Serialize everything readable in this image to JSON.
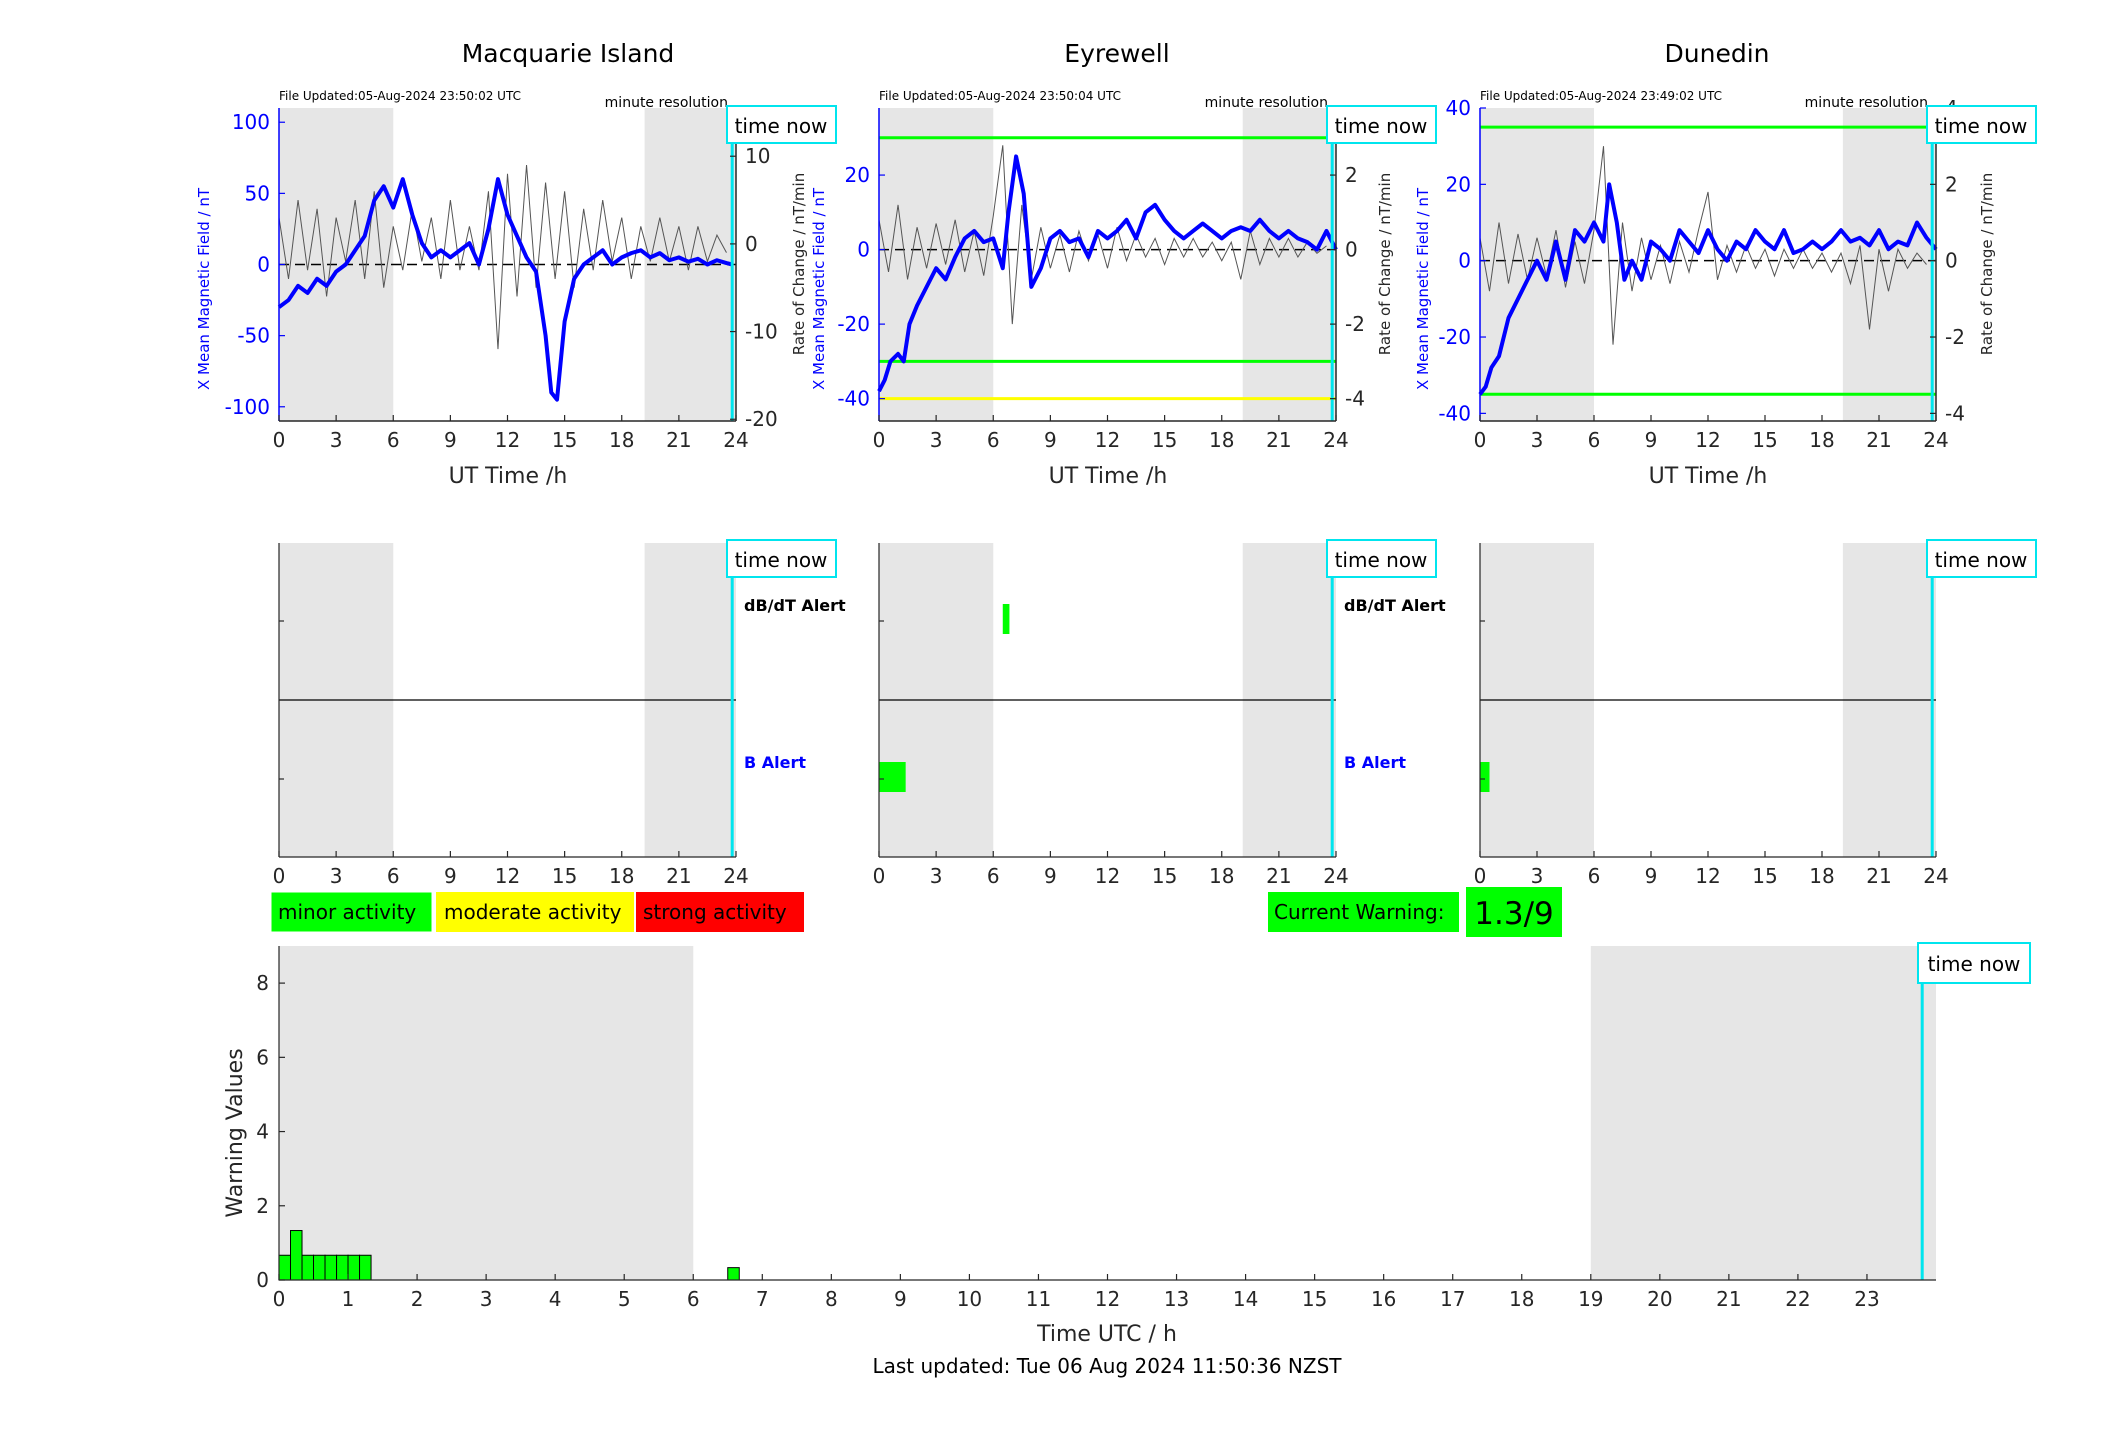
{
  "footer": {
    "last_updated": "Last updated: Tue 06 Aug 2024 11:50:36 NZST"
  },
  "legend": {
    "minor": "minor activity",
    "moderate": "moderate activity",
    "strong": "strong activity",
    "current_warning_label": "Current Warning:",
    "current_warning_value": "1.3/9"
  },
  "colors": {
    "minor": "#00ff00",
    "moderate": "#ffff00",
    "strong": "#ff0000",
    "x_field": "#0000ff",
    "time_now": "#00e5ee",
    "night_shade": "#e6e6e6",
    "rate": "#555555"
  },
  "stations": [
    {
      "title": "Macquarie Island",
      "file_updated": "File Updated:05-Aug-2024 23:50:02 UTC",
      "resolution": "minute resolution",
      "time_now_label": "time now",
      "xlabel": "UT Time /h",
      "ylabel_left": "X Mean Magnetic Field / nT",
      "ylabel_right": "Rate of Change / nT/min",
      "dbdt_alert": "dB/dT Alert",
      "b_alert": "B Alert"
    },
    {
      "title": "Eyrewell",
      "file_updated": "File Updated:05-Aug-2024 23:50:04 UTC",
      "resolution": "minute resolution",
      "time_now_label": "time now",
      "xlabel": "UT Time /h",
      "ylabel_left": "X Mean Magnetic Field / nT",
      "ylabel_right": "Rate of Change / nT/min",
      "dbdt_alert": "dB/dT Alert",
      "b_alert": "B Alert"
    },
    {
      "title": "Dunedin",
      "file_updated": "File Updated:05-Aug-2024 23:49:02 UTC",
      "resolution": "minute resolution",
      "time_now_label": "time now",
      "xlabel": "UT Time /h",
      "ylabel_left": "X Mean Magnetic Field / nT",
      "ylabel_right": "Rate of Change / nT/min",
      "dbdt_alert": "",
      "b_alert": ""
    }
  ],
  "chart_data": [
    {
      "type": "line",
      "station": "Macquarie Island",
      "xlim": [
        0,
        24
      ],
      "ylim": [
        -110,
        110
      ],
      "y2lim": [
        -20.2,
        15.5
      ],
      "xticks": [
        0,
        3,
        6,
        9,
        12,
        15,
        18,
        21,
        24
      ],
      "yticks": [
        -100,
        -50,
        0,
        50,
        100
      ],
      "y2ticks": [
        -20,
        -10,
        0,
        10
      ],
      "night_shade": [
        [
          0,
          6
        ],
        [
          19.2,
          24
        ]
      ],
      "time_now": 23.8,
      "thresholds": [],
      "series": [
        {
          "role": "x_field",
          "x": [
            0,
            0.5,
            1,
            1.5,
            2,
            2.5,
            3,
            3.5,
            4,
            4.5,
            5,
            5.5,
            6,
            6.5,
            7,
            7.5,
            8,
            8.5,
            9,
            9.5,
            10,
            10.5,
            11,
            11.5,
            12,
            12.5,
            13,
            13.5,
            14,
            14.3,
            14.6,
            15,
            15.5,
            16,
            16.5,
            17,
            17.5,
            18,
            18.5,
            19,
            19.5,
            20,
            20.5,
            21,
            21.5,
            22,
            22.5,
            23,
            23.5,
            23.8
          ],
          "y": [
            -30,
            -25,
            -15,
            -20,
            -10,
            -15,
            -5,
            0,
            10,
            20,
            45,
            55,
            40,
            60,
            35,
            15,
            5,
            10,
            5,
            10,
            15,
            0,
            25,
            60,
            35,
            20,
            5,
            -5,
            -50,
            -90,
            -95,
            -40,
            -10,
            0,
            5,
            10,
            0,
            5,
            8,
            10,
            5,
            8,
            3,
            5,
            2,
            4,
            0,
            3,
            1,
            0
          ]
        },
        {
          "role": "rate",
          "x": [
            0,
            0.5,
            1,
            1.5,
            2,
            2.5,
            3,
            3.5,
            4,
            4.5,
            5,
            5.5,
            6,
            6.5,
            7,
            7.5,
            8,
            8.5,
            9,
            9.5,
            10,
            10.5,
            11,
            11.5,
            12,
            12.5,
            13,
            13.5,
            14,
            14.5,
            15,
            15.5,
            16,
            16.5,
            17,
            17.5,
            18,
            18.5,
            19,
            19.5,
            20,
            20.5,
            21,
            21.5,
            22,
            22.5,
            23,
            23.5
          ],
          "y": [
            3,
            -4,
            5,
            -3,
            4,
            -6,
            3,
            -2,
            5,
            -4,
            6,
            -5,
            2,
            -3,
            4,
            -2,
            3,
            -4,
            5,
            -3,
            2,
            -3,
            6,
            -12,
            8,
            -6,
            9,
            -5,
            7,
            -4,
            6,
            -5,
            4,
            -3,
            5,
            -2,
            3,
            -4,
            2,
            -2,
            3,
            -2,
            2,
            -3,
            2,
            -2,
            1,
            -1
          ]
        }
      ]
    },
    {
      "type": "line",
      "station": "Eyrewell",
      "xlim": [
        0,
        24
      ],
      "ylim": [
        -46,
        38
      ],
      "y2lim": [
        -4.6,
        3.8
      ],
      "xticks": [
        0,
        3,
        6,
        9,
        12,
        15,
        18,
        21,
        24
      ],
      "yticks": [
        -40,
        -20,
        0,
        20
      ],
      "y2ticks": [
        -4,
        -2,
        0,
        2
      ],
      "night_shade": [
        [
          0,
          6
        ],
        [
          19.1,
          24
        ]
      ],
      "time_now": 23.8,
      "thresholds": [
        {
          "y": 30,
          "color": "#00ff00"
        },
        {
          "y": -30,
          "color": "#00ff00"
        },
        {
          "y": -40,
          "color": "#ffff00"
        }
      ],
      "series": [
        {
          "role": "x_field",
          "x": [
            0,
            0.3,
            0.6,
            1,
            1.3,
            1.6,
            2,
            2.5,
            3,
            3.5,
            4,
            4.5,
            5,
            5.5,
            6,
            6.5,
            6.8,
            7.2,
            7.6,
            8,
            8.5,
            9,
            9.5,
            10,
            10.5,
            11,
            11.5,
            12,
            12.5,
            13,
            13.5,
            14,
            14.5,
            15,
            15.5,
            16,
            16.5,
            17,
            17.5,
            18,
            18.5,
            19,
            19.5,
            20,
            20.5,
            21,
            21.5,
            22,
            22.5,
            23,
            23.5,
            24
          ],
          "y": [
            -38,
            -35,
            -30,
            -28,
            -30,
            -20,
            -15,
            -10,
            -5,
            -8,
            -2,
            3,
            5,
            2,
            3,
            -5,
            10,
            25,
            15,
            -10,
            -5,
            3,
            5,
            2,
            3,
            -2,
            5,
            3,
            5,
            8,
            3,
            10,
            12,
            8,
            5,
            3,
            5,
            7,
            5,
            3,
            5,
            6,
            5,
            8,
            5,
            3,
            5,
            3,
            2,
            0,
            5,
            0
          ]
        },
        {
          "role": "rate",
          "x": [
            0,
            0.5,
            1,
            1.5,
            2,
            2.5,
            3,
            3.5,
            4,
            4.5,
            5,
            5.5,
            6,
            6.5,
            7,
            7.5,
            8,
            8.5,
            9,
            9.5,
            10,
            10.5,
            11,
            11.5,
            12,
            12.5,
            13,
            13.5,
            14,
            14.5,
            15,
            15.5,
            16,
            16.5,
            17,
            17.5,
            18,
            18.5,
            19,
            19.5,
            20,
            20.5,
            21,
            21.5,
            22,
            22.5,
            23,
            23.5
          ],
          "y": [
            0.8,
            -0.6,
            1.2,
            -0.8,
            0.6,
            -0.5,
            0.7,
            -0.4,
            0.8,
            -0.6,
            0.5,
            -0.7,
            0.9,
            2.8,
            -2,
            1.2,
            -0.8,
            0.6,
            -0.5,
            0.4,
            -0.6,
            0.5,
            -0.3,
            0.4,
            -0.5,
            0.6,
            -0.3,
            0.4,
            -0.2,
            0.3,
            -0.4,
            0.3,
            -0.2,
            0.3,
            -0.2,
            0.2,
            -0.3,
            0.2,
            -0.8,
            0.5,
            -0.4,
            0.3,
            -0.2,
            0.3,
            -0.2,
            0.2,
            -0.1,
            0.1
          ]
        }
      ]
    },
    {
      "type": "line",
      "station": "Dunedin",
      "xlim": [
        0,
        24
      ],
      "ylim": [
        -42,
        40
      ],
      "y2lim": [
        -4.2,
        4.0
      ],
      "xticks": [
        0,
        3,
        6,
        9,
        12,
        15,
        18,
        21,
        24
      ],
      "yticks": [
        -40,
        -20,
        0,
        20,
        40
      ],
      "y2ticks": [
        -4,
        -2,
        0,
        2,
        4
      ],
      "night_shade": [
        [
          0,
          6
        ],
        [
          19.1,
          24
        ]
      ],
      "time_now": 23.8,
      "thresholds": [
        {
          "y": 35,
          "color": "#00ff00"
        },
        {
          "y": -35,
          "color": "#00ff00"
        }
      ],
      "series": [
        {
          "role": "x_field",
          "x": [
            0,
            0.3,
            0.6,
            1,
            1.5,
            2,
            2.5,
            3,
            3.5,
            4,
            4.5,
            5,
            5.5,
            6,
            6.5,
            6.8,
            7.2,
            7.6,
            8,
            8.5,
            9,
            9.5,
            10,
            10.5,
            11,
            11.5,
            12,
            12.5,
            13,
            13.5,
            14,
            14.5,
            15,
            15.5,
            16,
            16.5,
            17,
            17.5,
            18,
            18.5,
            19,
            19.5,
            20,
            20.5,
            21,
            21.5,
            22,
            22.5,
            23,
            23.5,
            24
          ],
          "y": [
            -35,
            -33,
            -28,
            -25,
            -15,
            -10,
            -5,
            0,
            -5,
            5,
            -5,
            8,
            5,
            10,
            5,
            20,
            10,
            -5,
            0,
            -5,
            5,
            3,
            0,
            8,
            5,
            2,
            8,
            3,
            0,
            5,
            3,
            8,
            5,
            3,
            8,
            2,
            3,
            5,
            3,
            5,
            8,
            5,
            6,
            4,
            8,
            3,
            5,
            4,
            10,
            6,
            3
          ]
        },
        {
          "role": "rate",
          "x": [
            0,
            0.5,
            1,
            1.5,
            2,
            2.5,
            3,
            3.5,
            4,
            4.5,
            5,
            5.5,
            6,
            6.5,
            7,
            7.5,
            8,
            8.5,
            9,
            9.5,
            10,
            10.5,
            11,
            11.5,
            12,
            12.5,
            13,
            13.5,
            14,
            14.5,
            15,
            15.5,
            16,
            16.5,
            17,
            17.5,
            18,
            18.5,
            19,
            19.5,
            20,
            20.5,
            21,
            21.5,
            22,
            22.5,
            23,
            23.5
          ],
          "y": [
            0.6,
            -0.8,
            1,
            -0.6,
            0.7,
            -0.5,
            0.6,
            -0.4,
            0.8,
            -0.7,
            0.5,
            -0.6,
            0.8,
            3,
            -2.2,
            1,
            -0.8,
            0.6,
            -0.5,
            0.4,
            -0.6,
            0.5,
            -0.3,
            0.8,
            1.8,
            -0.5,
            0.4,
            -0.3,
            0.4,
            -0.2,
            0.3,
            -0.4,
            0.3,
            -0.2,
            0.3,
            -0.2,
            0.2,
            -0.3,
            0.2,
            -0.6,
            0.4,
            -1.8,
            0.3,
            -0.8,
            0.3,
            -0.2,
            0.2,
            -0.1
          ]
        }
      ]
    },
    {
      "type": "bar",
      "role": "alert",
      "station": "Macquarie Island",
      "xlim": [
        0,
        24
      ],
      "xticks": [
        0,
        3,
        6,
        9,
        12,
        15,
        18,
        21,
        24
      ],
      "night_shade": [
        [
          0,
          6
        ],
        [
          19.2,
          24
        ]
      ],
      "time_now": 23.8,
      "dbdt_bars": [],
      "b_bars": []
    },
    {
      "type": "bar",
      "role": "alert",
      "station": "Eyrewell",
      "xlim": [
        0,
        24
      ],
      "xticks": [
        0,
        3,
        6,
        9,
        12,
        15,
        18,
        21,
        24
      ],
      "night_shade": [
        [
          0,
          6
        ],
        [
          19.1,
          24
        ]
      ],
      "time_now": 23.8,
      "dbdt_bars": [
        [
          6.5,
          6.85
        ]
      ],
      "b_bars": [
        [
          0,
          1.4
        ]
      ]
    },
    {
      "type": "bar",
      "role": "alert",
      "station": "Dunedin",
      "xlim": [
        0,
        24
      ],
      "xticks": [
        0,
        3,
        6,
        9,
        12,
        15,
        18,
        21,
        24
      ],
      "night_shade": [
        [
          0,
          6
        ],
        [
          19.1,
          24
        ]
      ],
      "time_now": 23.8,
      "dbdt_bars": [],
      "b_bars": [
        [
          0,
          0.5
        ]
      ]
    },
    {
      "type": "bar",
      "role": "warning",
      "xlabel": "Time UTC / h",
      "ylabel": "Warning Values",
      "xlim": [
        0,
        24
      ],
      "ylim": [
        0,
        9
      ],
      "xticks": [
        0,
        1,
        2,
        3,
        4,
        5,
        6,
        7,
        8,
        9,
        10,
        11,
        12,
        13,
        14,
        15,
        16,
        17,
        18,
        19,
        20,
        21,
        22,
        23
      ],
      "yticks": [
        0,
        2,
        4,
        6,
        8
      ],
      "night_shade": [
        [
          0,
          6
        ],
        [
          19,
          24
        ]
      ],
      "time_now": 23.8,
      "time_now_label": "time now",
      "bar_width": 0.1667,
      "x": [
        0.083,
        0.25,
        0.417,
        0.583,
        0.75,
        0.917,
        1.083,
        1.25,
        6.583
      ],
      "values": [
        0.667,
        1.333,
        0.667,
        0.667,
        0.667,
        0.667,
        0.667,
        0.667,
        0.333
      ]
    }
  ]
}
